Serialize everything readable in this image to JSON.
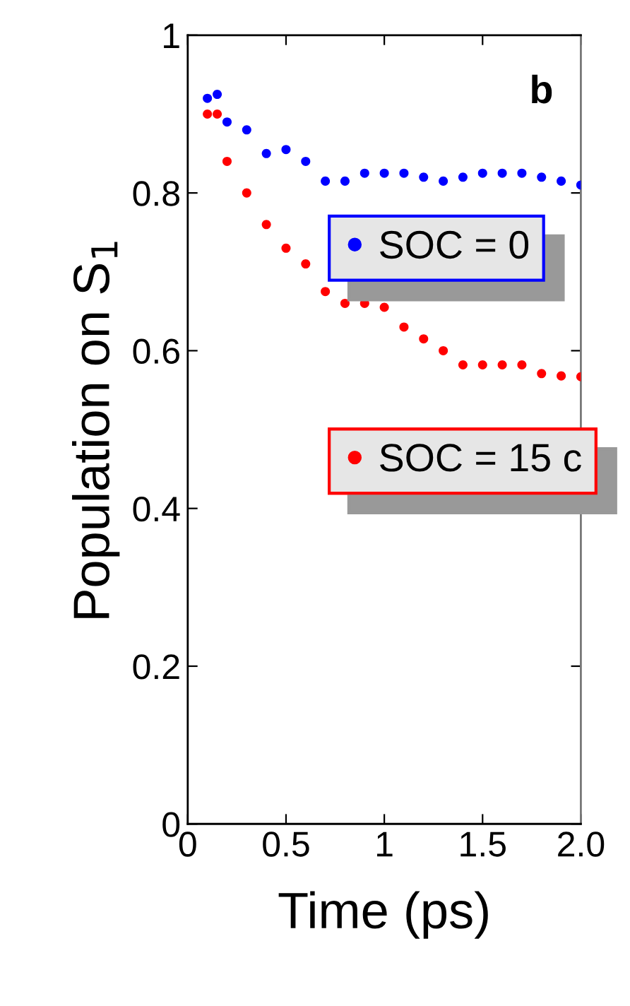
{
  "chart_data": {
    "type": "scatter",
    "xlabel": "Time (ps)",
    "ylabel": "Population on S$_{1}$",
    "annotations": [
      "b"
    ],
    "xlim": [
      0,
      2
    ],
    "xticks": [
      0,
      0.5,
      1,
      1.5,
      {
        "value": 2,
        "label": "2.0"
      }
    ],
    "ylim": [
      0,
      1
    ],
    "yticks": [
      0,
      0.2,
      0.4,
      0.6,
      0.8,
      1
    ],
    "x": [
      0.1,
      0.15,
      0.2,
      0.3,
      0.4,
      0.5,
      0.6,
      0.7,
      0.8,
      0.9,
      1.0,
      1.1,
      1.2,
      1.3,
      1.4,
      1.5,
      1.6,
      1.7,
      1.8,
      1.9,
      2.0
    ],
    "series": [
      {
        "name": "SOC = 0",
        "color": "#0000ff",
        "values": [
          0.92,
          0.925,
          0.89,
          0.88,
          0.85,
          0.855,
          0.84,
          0.815,
          0.815,
          0.825,
          0.825,
          0.825,
          0.82,
          0.815,
          0.82,
          0.825,
          0.825,
          0.825,
          0.82,
          0.815,
          0.81
        ]
      },
      {
        "name": "SOC = 15 c",
        "color": "#ff0000",
        "values": [
          0.9,
          0.9,
          0.84,
          0.8,
          0.76,
          0.73,
          0.71,
          0.675,
          0.66,
          0.66,
          0.655,
          0.63,
          0.615,
          0.6,
          0.582,
          0.582,
          0.582,
          0.582,
          0.571,
          0.568,
          0.567
        ]
      }
    ],
    "marker": "circle",
    "legend": "right",
    "grid": false
  }
}
